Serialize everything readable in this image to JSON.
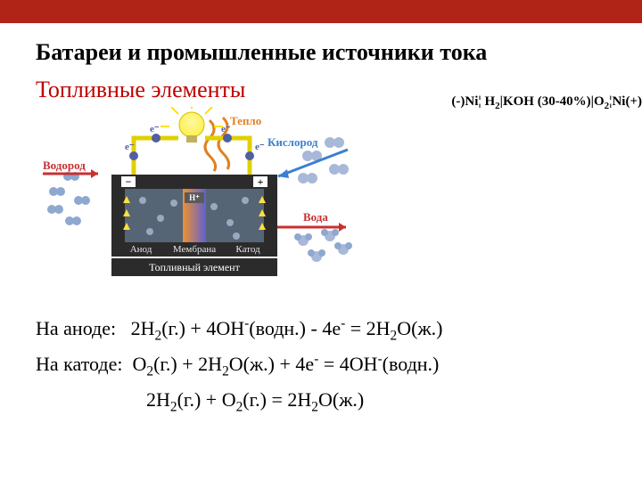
{
  "topbar_color": "#b02418",
  "title": "Батареи и промышленные источники тока",
  "subtitle": "Топливные элементы",
  "scheme_html": "(-)Ni¦ H<sub>2</sub>|KOH (30-40%)|O<sub>2</sub>¦Ni(+)",
  "diagram": {
    "labels": {
      "hydrogen": "Водород",
      "oxygen": "Кислород",
      "heat": "Тепло",
      "water": "Вода",
      "anode": "Анод",
      "membrane": "Мембрана",
      "cathode": "Катод",
      "caption": "Топливный элемент",
      "hplus": "H⁺",
      "electron": "e⁻",
      "plus": "+",
      "minus": "−"
    },
    "colors": {
      "hydrogen_text": "#c83030",
      "oxygen_text": "#3a7fd0",
      "heat_text": "#e08020",
      "water_text": "#c83030",
      "cell_body": "#2b2b2b",
      "cell_caption_bg": "#2b2b2b",
      "cell_caption_text": "#ffffff",
      "label_text": "#e6e6e6",
      "hplus_bg": "#5a5a5a",
      "bulb_fill": "#fff04a",
      "bulb_glow": "#ffe000",
      "wire": "#e0d000",
      "electrolyte": "#556575",
      "membrane_grad_a": "#f09030",
      "membrane_grad_b": "#6060d0",
      "spark": "#ffe040",
      "heat_wave": "#e08020",
      "h2_mol": "#8fa8d0",
      "o2_mol": "#a8b8d8",
      "water_mol": "#8fa8d0",
      "water_mol_o": "#a8b8d8"
    }
  },
  "equations": {
    "anode_label": "На аноде:",
    "anode_html": "2H<sub>2</sub>(г.) + 4OH<sup>-</sup>(водн.) - 4e<sup>-</sup> = 2H<sub>2</sub>O(ж.)",
    "cathode_label": "На катоде:",
    "cathode_html": "O<sub>2</sub>(г.) + 2H<sub>2</sub>O(ж.) + 4e<sup>-</sup> = 4OH<sup>-</sup>(водн.)",
    "overall_html": "2H<sub>2</sub>(г.) + O<sub>2</sub>(г.) = 2H<sub>2</sub>O(ж.)"
  }
}
